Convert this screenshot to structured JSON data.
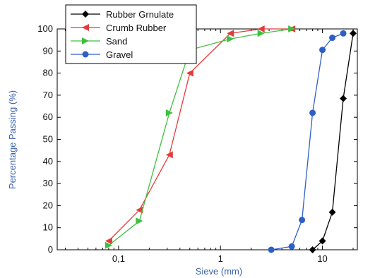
{
  "chart_data": {
    "type": "line",
    "xlabel": "Sieve (mm)",
    "ylabel": "Percentage Passing (%)",
    "xscale": "log",
    "xlim": [
      0.025,
      22
    ],
    "ylim": [
      0,
      100
    ],
    "x_ticks": [
      0.1,
      1,
      10
    ],
    "x_tick_labels": [
      "0,1",
      "1",
      "10"
    ],
    "y_ticks": [
      0,
      10,
      20,
      30,
      40,
      50,
      60,
      70,
      80,
      90,
      100
    ],
    "y_tick_labels": [
      "0",
      "10",
      "20",
      "30",
      "40",
      "50",
      "60",
      "70",
      "80",
      "90",
      "100"
    ],
    "legend_position": "top-left",
    "grid": false,
    "series": [
      {
        "name": "Rubber Grnulate",
        "color": "#000000",
        "marker": "diamond",
        "x": [
          8,
          10,
          12.5,
          16,
          20
        ],
        "y": [
          0,
          4,
          17,
          68.5,
          98
        ]
      },
      {
        "name": "Crumb Rubber",
        "color": "#e23b3b",
        "marker": "triangle-left",
        "x": [
          0.08,
          0.16,
          0.315,
          0.5,
          1.25,
          2.5,
          5
        ],
        "y": [
          4,
          18,
          43,
          80,
          98,
          100,
          100
        ]
      },
      {
        "name": "Sand",
        "color": "#3fbf3f",
        "marker": "triangle-right",
        "x": [
          0.08,
          0.16,
          0.315,
          0.5,
          1.25,
          2.5,
          5
        ],
        "y": [
          2,
          13,
          62,
          90.5,
          95.5,
          98,
          100
        ]
      },
      {
        "name": "Gravel",
        "color": "#2e5fc4",
        "marker": "circle",
        "x": [
          3.15,
          5,
          6.3,
          8,
          10,
          12.5,
          16
        ],
        "y": [
          0,
          1.5,
          13.5,
          62,
          90.5,
          96,
          98
        ]
      }
    ]
  }
}
